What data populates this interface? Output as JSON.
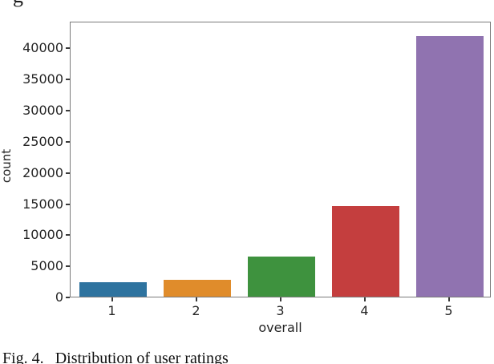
{
  "page": {
    "clipped_text_top": "g",
    "caption": {
      "label": "Fig. 4.",
      "text": "Distribution of user ratings"
    }
  },
  "chart_data": {
    "type": "bar",
    "title": "",
    "xlabel": "overall",
    "ylabel": "count",
    "categories": [
      "1",
      "2",
      "3",
      "4",
      "5"
    ],
    "values": [
      2300,
      2700,
      6400,
      14500,
      41800
    ],
    "bar_colors": [
      "#2e739f",
      "#e08c2b",
      "#3e923e",
      "#c43e3e",
      "#9073b0"
    ],
    "yticks": [
      0,
      5000,
      10000,
      15000,
      20000,
      25000,
      30000,
      35000,
      40000
    ],
    "ylim": [
      0,
      44300
    ],
    "grid": false,
    "legend": null,
    "bar_width_fraction": 0.8,
    "axis_color": "#7a7a7a",
    "tick_label_color": "#262626"
  }
}
